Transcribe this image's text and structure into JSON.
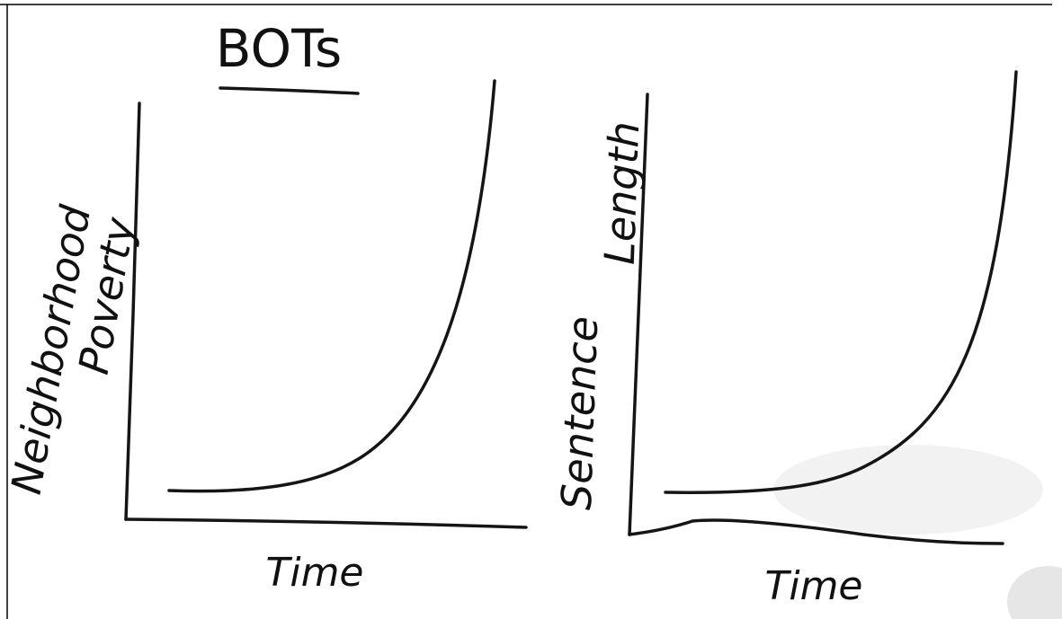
{
  "title": "BOTs",
  "panels": [
    {
      "y_label_lines": [
        "Neighborhood",
        "Poverty"
      ],
      "x_label": "Time"
    },
    {
      "y_label_lines": [
        "Sentence",
        "Length"
      ],
      "x_label": "Time"
    }
  ]
}
